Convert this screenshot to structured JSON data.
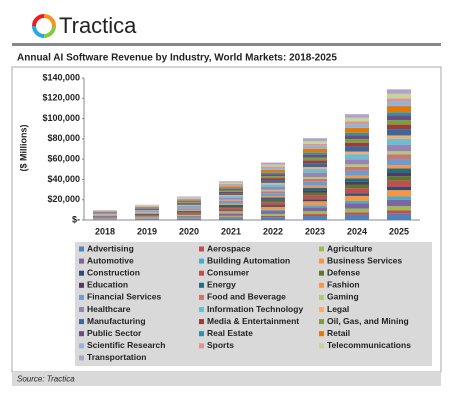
{
  "logo": "Tractica",
  "source": "Source: Tractica",
  "chart_data": {
    "type": "stacked_bar",
    "title": "Annual AI Software Revenue by Industry, World Markets: 2018-2025",
    "y_label": "($ Millions)",
    "categories": [
      "2018",
      "2019",
      "2020",
      "2021",
      "2022",
      "2023",
      "2024",
      "2025"
    ],
    "ylim": [
      0,
      140000
    ],
    "yticks": [
      {
        "value": 0,
        "label": "$-"
      },
      {
        "value": 20000,
        "label": "$20,000"
      },
      {
        "value": 40000,
        "label": "$40,000"
      },
      {
        "value": 60000,
        "label": "$60,000"
      },
      {
        "value": 80000,
        "label": "$80,000"
      },
      {
        "value": 100000,
        "label": "$100,000"
      },
      {
        "value": 120000,
        "label": "$120,000"
      },
      {
        "value": 140000,
        "label": "$140,000"
      }
    ],
    "series": [
      {
        "name": "Advertising",
        "color": "#4f81bd",
        "values": [
          480,
          730,
          1120,
          1850,
          2740,
          3910,
          5050,
          6240
        ]
      },
      {
        "name": "Aerospace",
        "color": "#c0504d",
        "values": [
          240,
          360,
          560,
          920,
          1370,
          1950,
          2530,
          3120
        ]
      },
      {
        "name": "Agriculture",
        "color": "#9bbb59",
        "values": [
          340,
          520,
          800,
          1320,
          1960,
          2790,
          3610,
          4460
        ]
      },
      {
        "name": "Automotive",
        "color": "#8064a2",
        "values": [
          480,
          730,
          1120,
          1850,
          2740,
          3910,
          5050,
          6240
        ]
      },
      {
        "name": "Building Automation",
        "color": "#4bacc6",
        "values": [
          240,
          360,
          560,
          920,
          1370,
          1950,
          2530,
          3120
        ]
      },
      {
        "name": "Business Services",
        "color": "#f79646",
        "values": [
          480,
          730,
          1120,
          1850,
          2740,
          3910,
          5050,
          6240
        ]
      },
      {
        "name": "Construction",
        "color": "#2c4d75",
        "values": [
          240,
          360,
          560,
          920,
          1370,
          1950,
          2530,
          3120
        ]
      },
      {
        "name": "Consumer",
        "color": "#c0504d",
        "values": [
          480,
          730,
          1120,
          1850,
          2740,
          3910,
          5050,
          6240
        ]
      },
      {
        "name": "Defense",
        "color": "#5f7530",
        "values": [
          340,
          520,
          800,
          1320,
          1960,
          2790,
          3610,
          4460
        ]
      },
      {
        "name": "Education",
        "color": "#4d3b62",
        "values": [
          240,
          360,
          560,
          920,
          1370,
          1950,
          2530,
          3120
        ]
      },
      {
        "name": "Energy",
        "color": "#276a7c",
        "values": [
          340,
          520,
          800,
          1320,
          1960,
          2790,
          3610,
          4460
        ]
      },
      {
        "name": "Fashion",
        "color": "#f79646",
        "values": [
          240,
          360,
          560,
          920,
          1370,
          1950,
          2530,
          3120
        ]
      },
      {
        "name": "Financial Services",
        "color": "#729aca",
        "values": [
          480,
          730,
          1120,
          1850,
          2740,
          3910,
          5050,
          6240
        ]
      },
      {
        "name": "Food and Beverage",
        "color": "#cd7371",
        "values": [
          340,
          520,
          800,
          1320,
          1960,
          2790,
          3610,
          4460
        ]
      },
      {
        "name": "Gaming",
        "color": "#afc97a",
        "values": [
          240,
          360,
          560,
          920,
          1370,
          1950,
          2530,
          3120
        ]
      },
      {
        "name": "Healthcare",
        "color": "#9983b5",
        "values": [
          480,
          730,
          1120,
          1850,
          2740,
          3910,
          5050,
          6240
        ]
      },
      {
        "name": "Information Technology",
        "color": "#6fbdd1",
        "values": [
          480,
          730,
          1120,
          1850,
          2740,
          3910,
          5050,
          6240
        ]
      },
      {
        "name": "Legal",
        "color": "#f9ab6b",
        "values": [
          240,
          360,
          560,
          920,
          1370,
          1950,
          2530,
          3120
        ]
      },
      {
        "name": "Manufacturing",
        "color": "#3a679c",
        "values": [
          480,
          730,
          1120,
          1850,
          2740,
          3910,
          5050,
          6240
        ]
      },
      {
        "name": "Media & Entertainment",
        "color": "#9e3b38",
        "values": [
          340,
          520,
          800,
          1320,
          1960,
          2790,
          3610,
          4460
        ]
      },
      {
        "name": "Oil, Gas, and Mining",
        "color": "#7e9c40",
        "values": [
          340,
          520,
          800,
          1320,
          1960,
          2790,
          3610,
          4460
        ]
      },
      {
        "name": "Public Sector",
        "color": "#664f82",
        "values": [
          340,
          520,
          800,
          1320,
          1960,
          2790,
          3610,
          4460
        ]
      },
      {
        "name": "Real Estate",
        "color": "#358ea6",
        "values": [
          240,
          360,
          560,
          920,
          1370,
          1950,
          2530,
          3120
        ]
      },
      {
        "name": "Retail",
        "color": "#dd7a0a",
        "values": [
          480,
          730,
          1120,
          1850,
          2740,
          3910,
          5050,
          6240
        ]
      },
      {
        "name": "Scientific Research",
        "color": "#95b3d7",
        "values": [
          340,
          520,
          800,
          1320,
          1960,
          2790,
          3610,
          4460
        ]
      },
      {
        "name": "Sports",
        "color": "#d99694",
        "values": [
          240,
          360,
          560,
          920,
          1370,
          1950,
          2530,
          3120
        ]
      },
      {
        "name": "Telecommunications",
        "color": "#c3d69b",
        "values": [
          340,
          520,
          800,
          1320,
          1960,
          2790,
          3610,
          4460
        ]
      },
      {
        "name": "Transportation",
        "color": "#b3a2c7",
        "values": [
          340,
          520,
          800,
          1320,
          1960,
          2790,
          3610,
          4460
        ]
      }
    ]
  }
}
